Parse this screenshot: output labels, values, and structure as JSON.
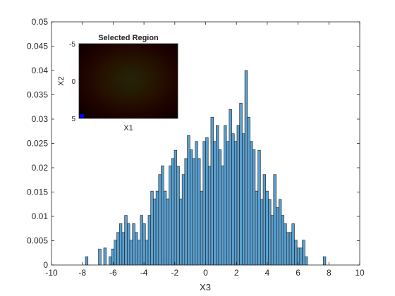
{
  "chart_data": [
    {
      "type": "bar",
      "subtype": "histogram",
      "title": "",
      "xlabel": "X3",
      "ylabel": "",
      "xlim": [
        -10,
        10
      ],
      "ylim": [
        0,
        0.05
      ],
      "xticks": [
        "-10",
        "-8",
        "-6",
        "-4",
        "-2",
        "0",
        "2",
        "4",
        "6",
        "8",
        "10"
      ],
      "yticks": [
        "0",
        "0.005",
        "0.01",
        "0.015",
        "0.02",
        "0.025",
        "0.03",
        "0.035",
        "0.04",
        "0.045",
        "0.05"
      ],
      "grid": false,
      "bar_color": "#5aa0d0",
      "bin_edges": [
        -7.8,
        7.8
      ],
      "values": [
        0.0017,
        0,
        0,
        0,
        0,
        0.0033,
        0,
        0.0035,
        0,
        0.0017,
        0.0033,
        0.0051,
        0.0067,
        0.0085,
        0.0067,
        0.0102,
        0.0085,
        0.0051,
        0.0085,
        0.0067,
        0.0051,
        0.0102,
        0.0085,
        0.0051,
        0.0102,
        0.0152,
        0.0136,
        0.0152,
        0.0186,
        0.0204,
        0.0152,
        0.0136,
        0.0204,
        0.0219,
        0.0236,
        0.0203,
        0.0136,
        0.0186,
        0.0219,
        0.0266,
        0.0237,
        0.0219,
        0.0254,
        0.0219,
        0.0152,
        0.0254,
        0.0262,
        0.0203,
        0.0304,
        0.0254,
        0.0287,
        0.0237,
        0.0204,
        0.0287,
        0.0254,
        0.032,
        0.027,
        0.0254,
        0.0287,
        0.0333,
        0.027,
        0.04,
        0.0304,
        0.0254,
        0.0237,
        0.0152,
        0.0236,
        0.0135,
        0.0186,
        0.0152,
        0.0135,
        0.0102,
        0.0186,
        0.0118,
        0.0135,
        0.0102,
        0.0085,
        0.0067,
        0.0067,
        0.0085,
        0.0051,
        0.0035,
        0.0035,
        0.0051,
        0.0017,
        0,
        0,
        0,
        0,
        0,
        0,
        0.0017
      ]
    },
    {
      "type": "heatmap",
      "title": "Selected Region",
      "xlabel": "X1",
      "ylabel": "X2",
      "yticks": [
        "-5",
        "0",
        "5"
      ],
      "colormap": "hot",
      "marker_color": "#0000ff"
    }
  ]
}
